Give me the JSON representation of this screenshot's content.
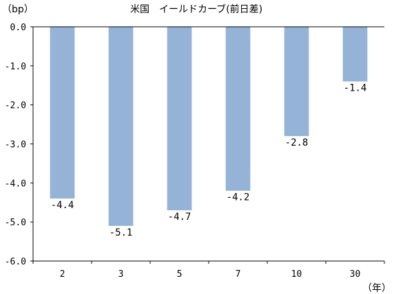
{
  "chart_data": {
    "type": "bar",
    "title": "米国　イールドカーブ(前日差)",
    "ylabel": "（bp）",
    "xlabel": "（年）",
    "categories": [
      "2",
      "3",
      "5",
      "7",
      "10",
      "30"
    ],
    "values": [
      -4.4,
      -5.1,
      -4.7,
      -4.2,
      -2.8,
      -1.4
    ],
    "data_labels": [
      "-4.4",
      "-5.1",
      "-4.7",
      "-4.2",
      "-2.8",
      "-1.4"
    ],
    "y_ticks": [
      0,
      -1,
      -2,
      -3,
      -4,
      -5,
      -6
    ],
    "y_tick_labels": [
      "0.0",
      "-1.0",
      "-2.0",
      "-3.0",
      "-4.0",
      "-5.0",
      "-6.0"
    ],
    "ylim": [
      -6,
      0
    ],
    "grid": false,
    "legend": "none",
    "bar_color": "#95b3d7"
  }
}
